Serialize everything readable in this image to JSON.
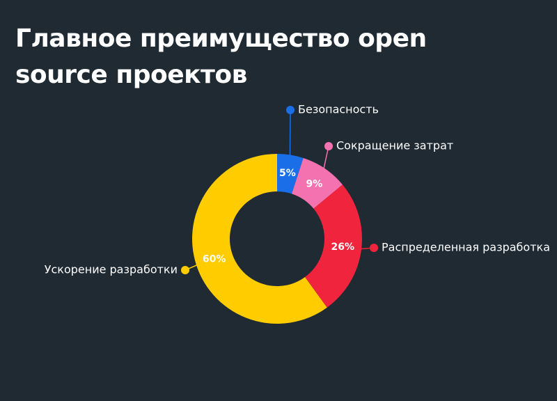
{
  "chart_data": {
    "type": "donut",
    "title": "Главное преимущество open source проектов",
    "categories": [
      "Безопасность",
      "Сокращение затрат",
      "Распределенная разработка",
      "Ускорение разработки"
    ],
    "values": [
      5,
      9,
      26,
      60
    ],
    "value_labels": [
      "5%",
      "9%",
      "26%",
      "60%"
    ],
    "colors": [
      "#1a6fe8",
      "#f472b0",
      "#f0243c",
      "#ffcc00"
    ]
  }
}
